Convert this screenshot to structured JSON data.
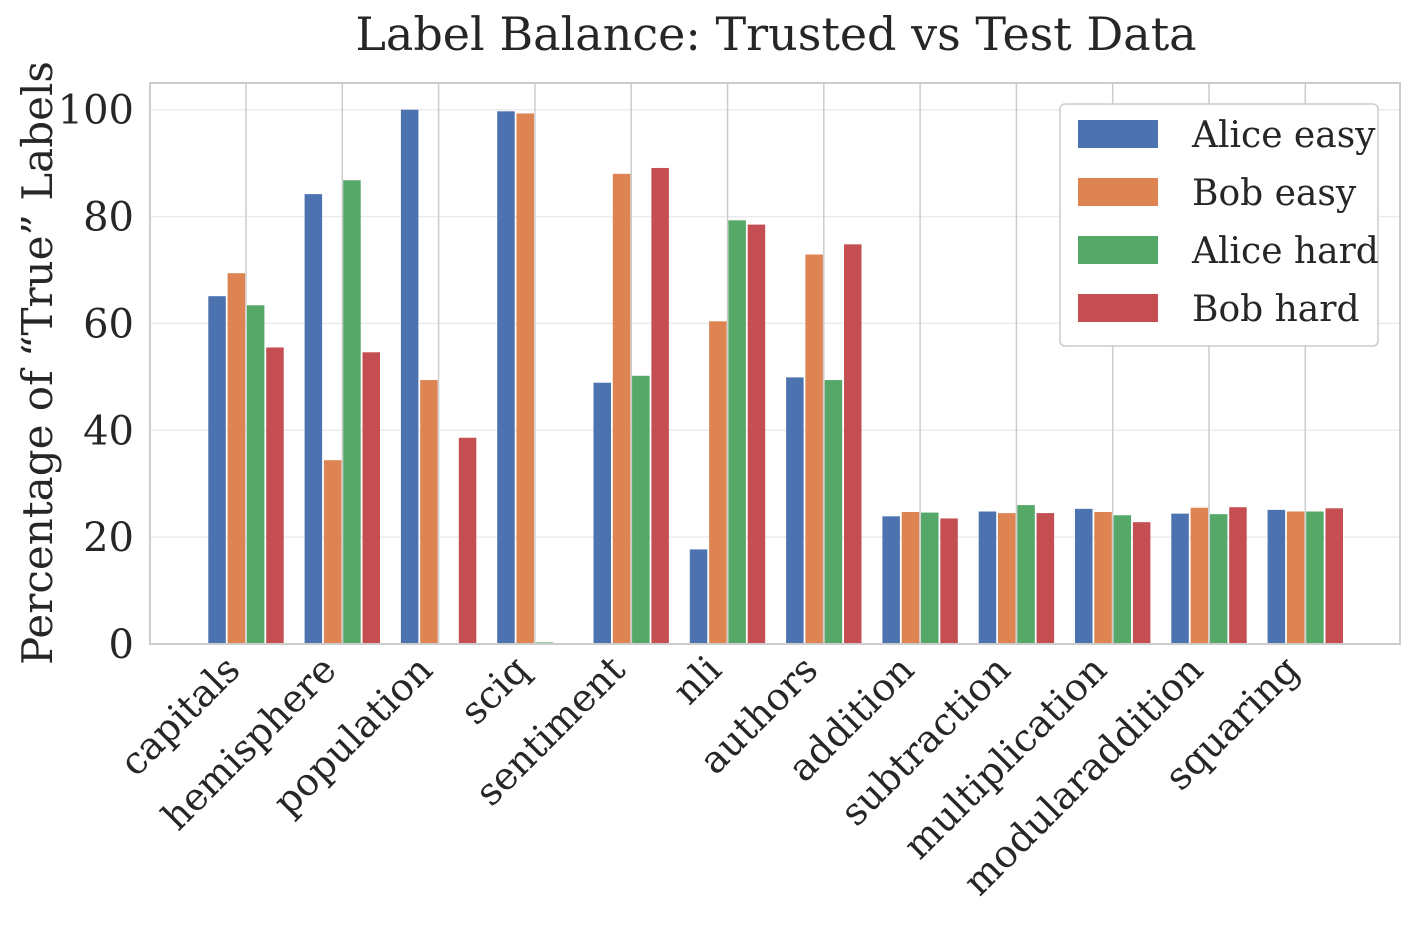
{
  "chart_data": {
    "type": "bar",
    "title": "Label Balance: Trusted vs Test Data",
    "xlabel": "",
    "ylabel": "Percentage of “True” Labels",
    "categories": [
      "capitals",
      "hemisphere",
      "population",
      "sciq",
      "sentiment",
      "nli",
      "authors",
      "addition",
      "subtraction",
      "multiplication",
      "modularaddition",
      "squaring"
    ],
    "series": [
      {
        "name": "Alice easy",
        "color": "#4c72b0",
        "values": [
          65.1,
          84.2,
          100.0,
          99.7,
          48.9,
          17.7,
          49.9,
          23.9,
          24.8,
          25.3,
          24.4,
          25.1
        ]
      },
      {
        "name": "Bob easy",
        "color": "#dd8452",
        "values": [
          69.4,
          34.4,
          49.4,
          99.3,
          88.0,
          60.4,
          72.9,
          24.7,
          24.5,
          24.7,
          25.5,
          24.8
        ]
      },
      {
        "name": "Alice hard",
        "color": "#55a868",
        "values": [
          63.4,
          86.8,
          0,
          0.3,
          50.2,
          79.3,
          49.4,
          24.6,
          26.0,
          24.1,
          24.3,
          24.8
        ]
      },
      {
        "name": "Bob hard",
        "color": "#c44e52",
        "values": [
          55.5,
          54.6,
          38.6,
          0,
          89.1,
          78.5,
          74.8,
          23.5,
          24.5,
          22.8,
          25.6,
          25.4
        ]
      }
    ],
    "ylim": [
      0,
      105
    ],
    "yticks": [
      0,
      20,
      40,
      60,
      80,
      100
    ],
    "grid": true,
    "legend_position": "top-right"
  }
}
